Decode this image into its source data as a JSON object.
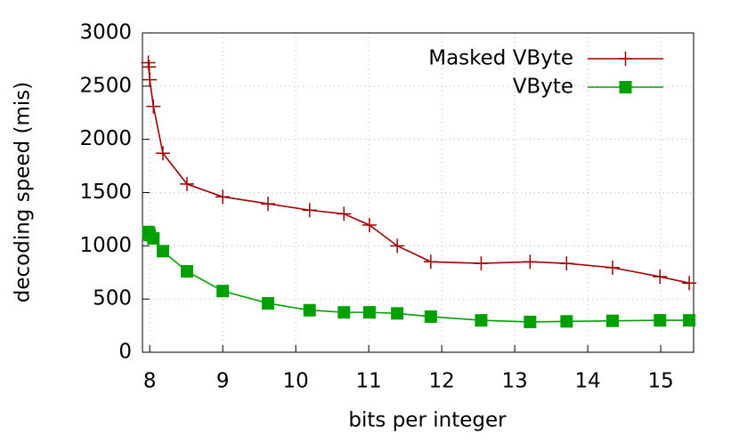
{
  "chart_data": {
    "type": "line",
    "xlabel": "bits per integer",
    "ylabel": "decoding speed (mis)",
    "xlim": [
      7.9,
      15.45
    ],
    "xticks": [
      8,
      9,
      10,
      11,
      12,
      13,
      14,
      15
    ],
    "ylim": [
      0,
      3000
    ],
    "yticks": [
      0,
      500,
      1000,
      1500,
      2000,
      2500,
      3000
    ],
    "grid": true,
    "legend": "top-right",
    "x": [
      7.98,
      7.99,
      8.0,
      8.05,
      8.18,
      8.51,
      9.0,
      9.62,
      10.19,
      10.66,
      11.01,
      11.39,
      11.85,
      12.54,
      13.21,
      13.71,
      14.34,
      14.99,
      15.39
    ],
    "series": [
      {
        "name": "Masked VByte",
        "color": "#a00000",
        "marker": "plus",
        "values": [
          2720,
          2680,
          2560,
          2310,
          1870,
          1580,
          1460,
          1395,
          1335,
          1300,
          1195,
          1000,
          850,
          835,
          850,
          835,
          795,
          710,
          650
        ]
      },
      {
        "name": "VByte",
        "color": "#00a000",
        "marker": "square",
        "values": [
          1130,
          1120,
          1100,
          1070,
          950,
          760,
          575,
          460,
          395,
          375,
          375,
          365,
          335,
          300,
          285,
          290,
          295,
          300,
          300
        ]
      }
    ]
  }
}
